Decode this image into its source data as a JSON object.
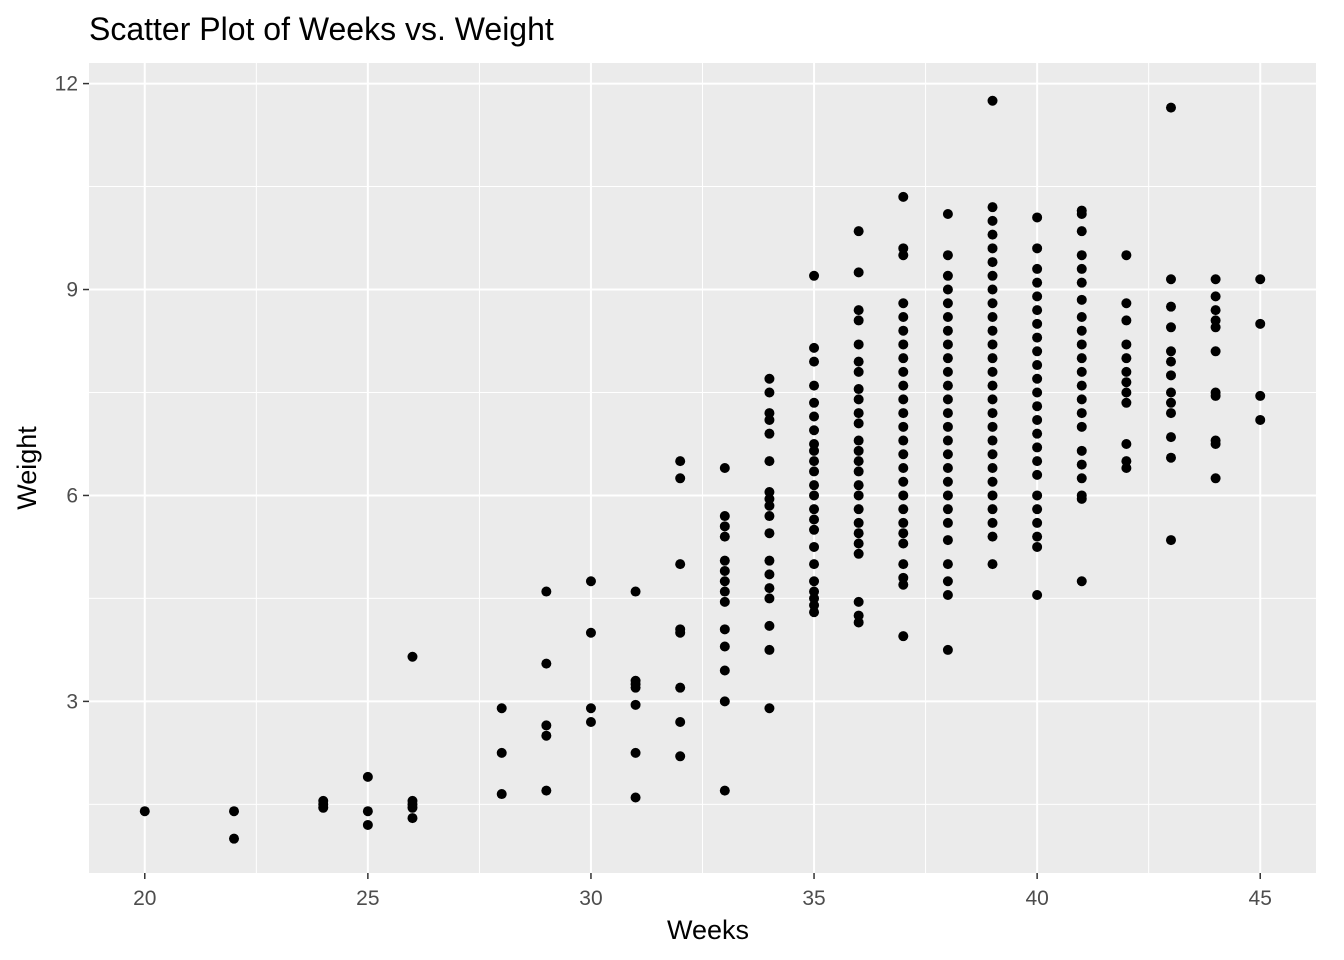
{
  "chart_data": {
    "type": "scatter",
    "title": "Scatter Plot of Weeks vs. Weight",
    "xlabel": "Weeks",
    "ylabel": "Weight",
    "xlim": [
      18.75,
      46.25
    ],
    "ylim": [
      0.5,
      12.3
    ],
    "x_ticks": [
      20,
      25,
      30,
      35,
      40,
      45
    ],
    "x_tick_labels": [
      "20",
      "25",
      "30",
      "35",
      "40",
      "45"
    ],
    "y_ticks": [
      3,
      6,
      9,
      12
    ],
    "y_tick_labels": [
      "3",
      "6",
      "9",
      "12"
    ],
    "grid": true,
    "panel_color": "#ebebeb",
    "grid_color": "#ffffff",
    "point_color": "#000000",
    "points": [
      [
        20,
        1.4
      ],
      [
        22,
        1.4
      ],
      [
        22,
        1.0
      ],
      [
        24,
        1.5
      ],
      [
        24,
        1.45
      ],
      [
        24,
        1.55
      ],
      [
        25,
        1.9
      ],
      [
        25,
        1.4
      ],
      [
        25,
        1.2
      ],
      [
        26,
        3.65
      ],
      [
        26,
        1.55
      ],
      [
        26,
        1.5
      ],
      [
        26,
        1.45
      ],
      [
        26,
        1.3
      ],
      [
        28,
        2.9
      ],
      [
        28,
        2.25
      ],
      [
        28,
        1.65
      ],
      [
        29,
        4.6
      ],
      [
        29,
        3.55
      ],
      [
        29,
        2.65
      ],
      [
        29,
        2.5
      ],
      [
        29,
        1.7
      ],
      [
        30,
        4.75
      ],
      [
        30,
        4.0
      ],
      [
        30,
        2.9
      ],
      [
        30,
        2.7
      ],
      [
        31,
        4.6
      ],
      [
        31,
        3.3
      ],
      [
        31,
        3.25
      ],
      [
        31,
        3.2
      ],
      [
        31,
        2.95
      ],
      [
        31,
        2.25
      ],
      [
        31,
        1.6
      ],
      [
        32,
        6.5
      ],
      [
        32,
        6.25
      ],
      [
        32,
        5.0
      ],
      [
        32,
        4.05
      ],
      [
        32,
        4.0
      ],
      [
        32,
        3.2
      ],
      [
        32,
        2.7
      ],
      [
        32,
        2.2
      ],
      [
        33,
        6.4
      ],
      [
        33,
        5.7
      ],
      [
        33,
        5.55
      ],
      [
        33,
        5.4
      ],
      [
        33,
        5.05
      ],
      [
        33,
        4.9
      ],
      [
        33,
        4.75
      ],
      [
        33,
        4.6
      ],
      [
        33,
        4.45
      ],
      [
        33,
        4.05
      ],
      [
        33,
        3.8
      ],
      [
        33,
        3.45
      ],
      [
        33,
        3.0
      ],
      [
        33,
        1.7
      ],
      [
        34,
        7.7
      ],
      [
        34,
        7.5
      ],
      [
        34,
        7.2
      ],
      [
        34,
        7.1
      ],
      [
        34,
        6.9
      ],
      [
        34,
        6.5
      ],
      [
        34,
        6.05
      ],
      [
        34,
        5.95
      ],
      [
        34,
        5.85
      ],
      [
        34,
        5.7
      ],
      [
        34,
        5.45
      ],
      [
        34,
        5.05
      ],
      [
        34,
        4.85
      ],
      [
        34,
        4.65
      ],
      [
        34,
        4.5
      ],
      [
        34,
        4.1
      ],
      [
        34,
        3.75
      ],
      [
        34,
        2.9
      ],
      [
        35,
        9.2
      ],
      [
        35,
        8.15
      ],
      [
        35,
        7.95
      ],
      [
        35,
        7.6
      ],
      [
        35,
        7.35
      ],
      [
        35,
        7.15
      ],
      [
        35,
        6.95
      ],
      [
        35,
        6.75
      ],
      [
        35,
        6.65
      ],
      [
        35,
        6.5
      ],
      [
        35,
        6.35
      ],
      [
        35,
        6.15
      ],
      [
        35,
        6.0
      ],
      [
        35,
        5.8
      ],
      [
        35,
        5.65
      ],
      [
        35,
        5.5
      ],
      [
        35,
        5.25
      ],
      [
        35,
        5.0
      ],
      [
        35,
        4.75
      ],
      [
        35,
        4.6
      ],
      [
        35,
        4.5
      ],
      [
        35,
        4.4
      ],
      [
        35,
        4.3
      ],
      [
        36,
        9.85
      ],
      [
        36,
        9.25
      ],
      [
        36,
        8.7
      ],
      [
        36,
        8.55
      ],
      [
        36,
        8.2
      ],
      [
        36,
        7.95
      ],
      [
        36,
        7.8
      ],
      [
        36,
        7.55
      ],
      [
        36,
        7.4
      ],
      [
        36,
        7.2
      ],
      [
        36,
        7.05
      ],
      [
        36,
        6.8
      ],
      [
        36,
        6.65
      ],
      [
        36,
        6.5
      ],
      [
        36,
        6.35
      ],
      [
        36,
        6.15
      ],
      [
        36,
        6.0
      ],
      [
        36,
        5.8
      ],
      [
        36,
        5.6
      ],
      [
        36,
        5.45
      ],
      [
        36,
        5.3
      ],
      [
        36,
        5.15
      ],
      [
        36,
        4.45
      ],
      [
        36,
        4.25
      ],
      [
        36,
        4.15
      ],
      [
        37,
        10.35
      ],
      [
        37,
        9.6
      ],
      [
        37,
        9.5
      ],
      [
        37,
        8.8
      ],
      [
        37,
        8.6
      ],
      [
        37,
        8.4
      ],
      [
        37,
        8.2
      ],
      [
        37,
        8.0
      ],
      [
        37,
        7.8
      ],
      [
        37,
        7.6
      ],
      [
        37,
        7.4
      ],
      [
        37,
        7.2
      ],
      [
        37,
        7.0
      ],
      [
        37,
        6.8
      ],
      [
        37,
        6.6
      ],
      [
        37,
        6.4
      ],
      [
        37,
        6.2
      ],
      [
        37,
        6.0
      ],
      [
        37,
        5.8
      ],
      [
        37,
        5.6
      ],
      [
        37,
        5.45
      ],
      [
        37,
        5.3
      ],
      [
        37,
        5.0
      ],
      [
        37,
        4.8
      ],
      [
        37,
        4.7
      ],
      [
        37,
        3.95
      ],
      [
        38,
        10.1
      ],
      [
        38,
        9.5
      ],
      [
        38,
        9.2
      ],
      [
        38,
        9.0
      ],
      [
        38,
        8.8
      ],
      [
        38,
        8.6
      ],
      [
        38,
        8.4
      ],
      [
        38,
        8.2
      ],
      [
        38,
        8.0
      ],
      [
        38,
        7.8
      ],
      [
        38,
        7.6
      ],
      [
        38,
        7.4
      ],
      [
        38,
        7.2
      ],
      [
        38,
        7.0
      ],
      [
        38,
        6.8
      ],
      [
        38,
        6.6
      ],
      [
        38,
        6.4
      ],
      [
        38,
        6.2
      ],
      [
        38,
        6.0
      ],
      [
        38,
        5.8
      ],
      [
        38,
        5.6
      ],
      [
        38,
        5.35
      ],
      [
        38,
        5.0
      ],
      [
        38,
        4.75
      ],
      [
        38,
        4.55
      ],
      [
        38,
        3.75
      ],
      [
        39,
        11.75
      ],
      [
        39,
        10.2
      ],
      [
        39,
        10.0
      ],
      [
        39,
        9.8
      ],
      [
        39,
        9.6
      ],
      [
        39,
        9.4
      ],
      [
        39,
        9.2
      ],
      [
        39,
        9.0
      ],
      [
        39,
        8.8
      ],
      [
        39,
        8.6
      ],
      [
        39,
        8.4
      ],
      [
        39,
        8.2
      ],
      [
        39,
        8.0
      ],
      [
        39,
        7.8
      ],
      [
        39,
        7.6
      ],
      [
        39,
        7.4
      ],
      [
        39,
        7.2
      ],
      [
        39,
        7.0
      ],
      [
        39,
        6.8
      ],
      [
        39,
        6.6
      ],
      [
        39,
        6.4
      ],
      [
        39,
        6.2
      ],
      [
        39,
        6.0
      ],
      [
        39,
        5.8
      ],
      [
        39,
        5.6
      ],
      [
        39,
        5.4
      ],
      [
        39,
        5.0
      ],
      [
        40,
        10.05
      ],
      [
        40,
        9.6
      ],
      [
        40,
        9.3
      ],
      [
        40,
        9.1
      ],
      [
        40,
        8.9
      ],
      [
        40,
        8.7
      ],
      [
        40,
        8.5
      ],
      [
        40,
        8.3
      ],
      [
        40,
        8.1
      ],
      [
        40,
        7.9
      ],
      [
        40,
        7.7
      ],
      [
        40,
        7.5
      ],
      [
        40,
        7.3
      ],
      [
        40,
        7.1
      ],
      [
        40,
        6.9
      ],
      [
        40,
        6.7
      ],
      [
        40,
        6.5
      ],
      [
        40,
        6.3
      ],
      [
        40,
        6.0
      ],
      [
        40,
        5.8
      ],
      [
        40,
        5.6
      ],
      [
        40,
        5.4
      ],
      [
        40,
        5.25
      ],
      [
        40,
        4.55
      ],
      [
        41,
        10.15
      ],
      [
        41,
        10.1
      ],
      [
        41,
        9.85
      ],
      [
        41,
        9.5
      ],
      [
        41,
        9.3
      ],
      [
        41,
        9.1
      ],
      [
        41,
        8.85
      ],
      [
        41,
        8.6
      ],
      [
        41,
        8.4
      ],
      [
        41,
        8.2
      ],
      [
        41,
        8.0
      ],
      [
        41,
        7.8
      ],
      [
        41,
        7.6
      ],
      [
        41,
        7.4
      ],
      [
        41,
        7.2
      ],
      [
        41,
        7.0
      ],
      [
        41,
        6.65
      ],
      [
        41,
        6.45
      ],
      [
        41,
        6.25
      ],
      [
        41,
        6.0
      ],
      [
        41,
        5.95
      ],
      [
        41,
        4.75
      ],
      [
        42,
        9.5
      ],
      [
        42,
        8.8
      ],
      [
        42,
        8.55
      ],
      [
        42,
        8.2
      ],
      [
        42,
        8.0
      ],
      [
        42,
        7.8
      ],
      [
        42,
        7.65
      ],
      [
        42,
        7.5
      ],
      [
        42,
        7.35
      ],
      [
        42,
        6.75
      ],
      [
        42,
        6.5
      ],
      [
        42,
        6.4
      ],
      [
        43,
        11.65
      ],
      [
        43,
        9.15
      ],
      [
        43,
        8.75
      ],
      [
        43,
        8.45
      ],
      [
        43,
        8.1
      ],
      [
        43,
        7.95
      ],
      [
        43,
        7.75
      ],
      [
        43,
        7.5
      ],
      [
        43,
        7.35
      ],
      [
        43,
        7.2
      ],
      [
        43,
        6.85
      ],
      [
        43,
        6.55
      ],
      [
        43,
        5.35
      ],
      [
        44,
        9.15
      ],
      [
        44,
        8.9
      ],
      [
        44,
        8.7
      ],
      [
        44,
        8.55
      ],
      [
        44,
        8.45
      ],
      [
        44,
        8.1
      ],
      [
        44,
        7.5
      ],
      [
        44,
        7.45
      ],
      [
        44,
        6.8
      ],
      [
        44,
        6.75
      ],
      [
        44,
        6.25
      ],
      [
        45,
        9.15
      ],
      [
        45,
        8.5
      ],
      [
        45,
        7.45
      ],
      [
        45,
        7.1
      ]
    ]
  }
}
